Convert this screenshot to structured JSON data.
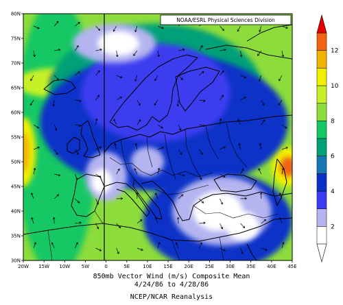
{
  "credit": "NOAA/ESRL Physical Sciences Division",
  "title": "850mb Vector Wind (m/s) Composite Mean",
  "date_range": "4/24/86 to 4/28/86",
  "source": "NCEP/NCAR Reanalysis",
  "axes": {
    "lat_ticks": [
      "80N",
      "75N",
      "70N",
      "65N",
      "60N",
      "55N",
      "50N",
      "45N",
      "40N",
      "35N",
      "30N"
    ],
    "lon_ticks": [
      "20W",
      "15W",
      "10W",
      "5W",
      "0",
      "5E",
      "10E",
      "15E",
      "20E",
      "25E",
      "30E",
      "35E",
      "40E",
      "45E"
    ],
    "lon_range": [
      -20,
      45
    ],
    "lat_range": [
      30,
      80
    ]
  },
  "colorbar": {
    "labels": [
      "2",
      "4",
      "6",
      "8",
      "10",
      "12"
    ],
    "range": [
      1,
      13
    ],
    "levels": [
      {
        "from": 1,
        "to": 2,
        "color": "#ffffff"
      },
      {
        "from": 2,
        "to": 3,
        "color": "#b4b4f0"
      },
      {
        "from": 3,
        "to": 4,
        "color": "#3c3cf0"
      },
      {
        "from": 4,
        "to": 5,
        "color": "#0a32c8"
      },
      {
        "from": 5,
        "to": 6,
        "color": "#1478b4"
      },
      {
        "from": 6,
        "to": 7,
        "color": "#00a078"
      },
      {
        "from": 7,
        "to": 8,
        "color": "#14c864"
      },
      {
        "from": 8,
        "to": 9,
        "color": "#8cdc3c"
      },
      {
        "from": 9,
        "to": 10,
        "color": "#c8f028"
      },
      {
        "from": 10,
        "to": 11,
        "color": "#f0f000"
      },
      {
        "from": 11,
        "to": 12,
        "color": "#f0b400"
      },
      {
        "from": 12,
        "to": 13,
        "color": "#f06414"
      }
    ],
    "end_color": "#e60000"
  },
  "wind_field": {
    "background_color": "#8cdc3c",
    "regions": [
      {
        "name": "western-green-band",
        "color": "#14c864",
        "lon": -12,
        "lat": 55,
        "rlon": 10,
        "rlat": 28
      },
      {
        "name": "iceland-yellow-band",
        "color": "#c8f028",
        "lon": -12,
        "lat": 66,
        "rlon": 10,
        "rlat": 3
      },
      {
        "name": "iceland-max",
        "color": "#f06414",
        "lon": -10,
        "lat": 66.5,
        "rlon": 3.5,
        "rlat": 1.8
      },
      {
        "name": "atlantic-west-yellow",
        "color": "#f0f000",
        "lon": -20,
        "lat": 52,
        "rlon": 3,
        "rlat": 7
      },
      {
        "name": "atlantic-west-max",
        "color": "#f0b400",
        "lon": -20,
        "lat": 52,
        "rlon": 1.5,
        "rlat": 4
      },
      {
        "name": "east-max-yellow",
        "color": "#f0f000",
        "lon": 44,
        "lat": 49,
        "rlon": 4,
        "rlat": 4
      },
      {
        "name": "east-max",
        "color": "#f06414",
        "lon": 44,
        "lat": 49,
        "rlon": 2,
        "rlat": 2
      },
      {
        "name": "norway-jet-teal",
        "color": "#00a078",
        "lon": 12,
        "lat": 64,
        "rlon": 26,
        "rlat": 14
      },
      {
        "name": "north-sea-blue",
        "color": "#0a32c8",
        "lon": 14,
        "lat": 58,
        "rlon": 30,
        "rlat": 14
      },
      {
        "name": "scandinavia-blue",
        "color": "#3c3cf0",
        "lon": 12,
        "lat": 64,
        "rlon": 18,
        "rlat": 10
      },
      {
        "name": "arctic-lavender",
        "color": "#b4b4f0",
        "lon": 2,
        "lat": 74,
        "rlon": 10,
        "rlat": 4
      },
      {
        "name": "arctic-calm",
        "color": "#ffffff",
        "lon": 3,
        "lat": 74,
        "rlon": 5,
        "rlat": 2.5
      },
      {
        "name": "west-europe-lavender",
        "color": "#b4b4f0",
        "lon": 0,
        "lat": 47,
        "rlon": 5,
        "rlat": 5
      },
      {
        "name": "west-europe-calm",
        "color": "#ffffff",
        "lon": -1,
        "lat": 46,
        "rlon": 2.5,
        "rlat": 2.5
      },
      {
        "name": "central-europe-lavender",
        "color": "#b4b4f0",
        "lon": 10,
        "lat": 50,
        "rlon": 4,
        "rlat": 3
      },
      {
        "name": "mediterranean-blue",
        "color": "#0a32c8",
        "lon": 27,
        "lat": 38,
        "rlon": 18,
        "rlat": 10
      },
      {
        "name": "balkan-lavender",
        "color": "#b4b4f0",
        "lon": 28,
        "lat": 40,
        "rlon": 12,
        "rlat": 7
      },
      {
        "name": "balkan-calm",
        "color": "#ffffff",
        "lon": 27,
        "lat": 40,
        "rlon": 6,
        "rlat": 4
      },
      {
        "name": "aegean-calm",
        "color": "#ffffff",
        "lon": 33,
        "lat": 37,
        "rlon": 4,
        "rlat": 3
      }
    ]
  }
}
